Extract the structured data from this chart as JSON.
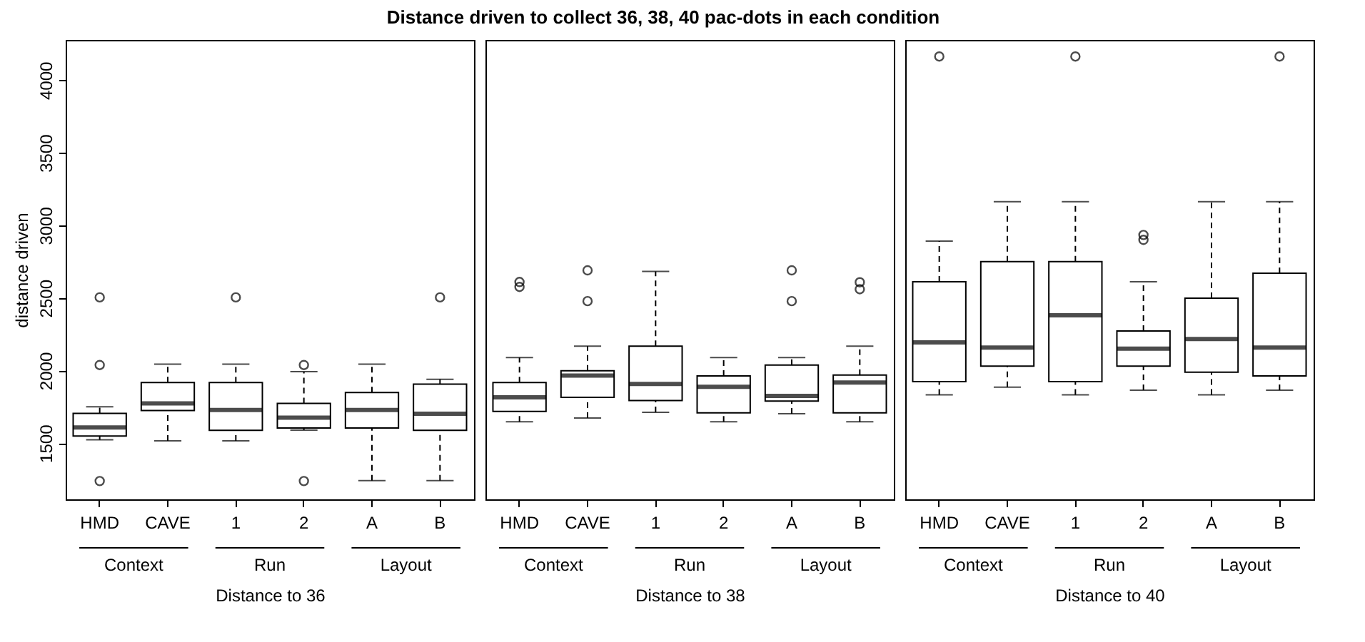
{
  "chart_data": [
    {
      "type": "box",
      "title": "Distance driven to collect 36, 38, 40 pac-dots in each condition",
      "ylabel": "distance driven",
      "xlabel": "Distance to 36",
      "categories": [
        "HMD",
        "CAVE",
        "1",
        "2",
        "A",
        "B"
      ],
      "annotations": [
        "Context",
        "Run",
        "Layout"
      ],
      "ylim": [
        1113,
        4277
      ],
      "yticks": [
        1500,
        2000,
        2500,
        3000,
        3500,
        4000
      ],
      "grid": false,
      "boxes": [
        {
          "low": 1523,
          "q1": 1549,
          "median": 1608,
          "q3": 1705,
          "high": 1751,
          "outliers": [
            2038,
            2504,
            1239
          ]
        },
        {
          "low": 1516,
          "q1": 1725,
          "median": 1774,
          "q3": 1917,
          "high": 2044
        },
        {
          "low": 1516,
          "q1": 1588,
          "median": 1728,
          "q3": 1917,
          "high": 2044,
          "outliers": [
            2504
          ]
        },
        {
          "low": 1590,
          "q1": 1604,
          "median": 1676,
          "q3": 1774,
          "high": 1992,
          "outliers": [
            2038,
            1239
          ]
        },
        {
          "low": 1242,
          "q1": 1604,
          "median": 1728,
          "q3": 1849,
          "high": 2044
        },
        {
          "low": 1242,
          "q1": 1588,
          "median": 1702,
          "q3": 1907,
          "high": 1940,
          "outliers": [
            2504
          ]
        }
      ]
    },
    {
      "type": "box",
      "xlabel": "Distance to 38",
      "categories": [
        "HMD",
        "CAVE",
        "1",
        "2",
        "A",
        "B"
      ],
      "annotations": [
        "Context",
        "Run",
        "Layout"
      ],
      "ylim": [
        1113,
        4277
      ],
      "yticks": [
        1500,
        2000,
        2500,
        3000,
        3500,
        4000
      ],
      "tick_labels": "x",
      "grid": false,
      "boxes": [
        {
          "low": 1647,
          "q1": 1718,
          "median": 1816,
          "q3": 1917,
          "high": 2090,
          "outliers": [
            2610,
            2576
          ]
        },
        {
          "low": 1673,
          "q1": 1816,
          "median": 1966,
          "q3": 1999,
          "high": 2168,
          "outliers": [
            2690,
            2478
          ]
        },
        {
          "low": 1712,
          "q1": 1793,
          "median": 1908,
          "q3": 2168,
          "high": 2683
        },
        {
          "low": 1647,
          "q1": 1709,
          "median": 1888,
          "q3": 1963,
          "high": 2090
        },
        {
          "low": 1702,
          "q1": 1790,
          "median": 1826,
          "q3": 2038,
          "high": 2090,
          "outliers": [
            2690,
            2478
          ]
        },
        {
          "low": 1647,
          "q1": 1709,
          "median": 1917,
          "q3": 1969,
          "high": 2168,
          "outliers": [
            2608,
            2560
          ]
        }
      ]
    },
    {
      "type": "box",
      "xlabel": "Distance to 40",
      "categories": [
        "HMD",
        "CAVE",
        "1",
        "2",
        "A",
        "B"
      ],
      "annotations": [
        "Context",
        "Run",
        "Layout"
      ],
      "ylim": [
        1113,
        4277
      ],
      "yticks": [
        1500,
        2000,
        2500,
        3000,
        3500,
        4000
      ],
      "tick_labels": "x",
      "grid": false,
      "boxes": [
        {
          "low": 1833,
          "q1": 1924,
          "median": 2194,
          "q3": 2612,
          "high": 2892,
          "outliers": [
            4163
          ]
        },
        {
          "low": 1885,
          "q1": 2031,
          "median": 2158,
          "q3": 2750,
          "high": 3163
        },
        {
          "low": 1833,
          "q1": 1924,
          "median": 2380,
          "q3": 2750,
          "high": 3163,
          "outliers": [
            4163
          ]
        },
        {
          "low": 1865,
          "q1": 2031,
          "median": 2151,
          "q3": 2273,
          "high": 2612,
          "outliers": [
            2934,
            2900
          ]
        },
        {
          "low": 1833,
          "q1": 1989,
          "median": 2217,
          "q3": 2498,
          "high": 3163
        },
        {
          "low": 1865,
          "q1": 1963,
          "median": 2158,
          "q3": 2671,
          "high": 3163,
          "outliers": [
            4163
          ]
        }
      ]
    }
  ]
}
